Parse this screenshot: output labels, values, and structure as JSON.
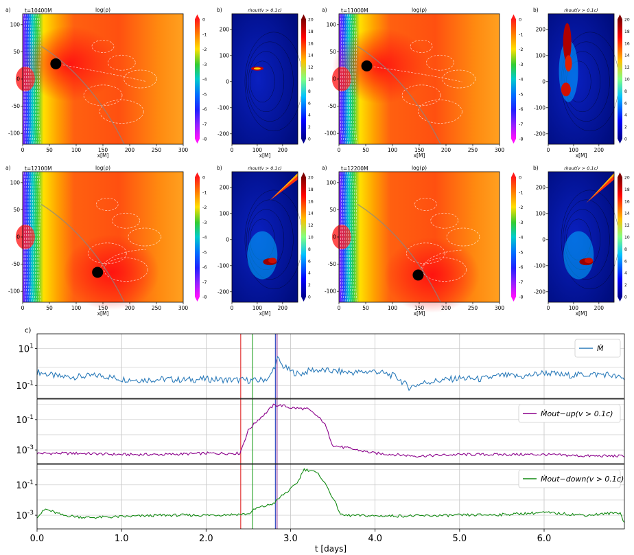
{
  "figure": {
    "panel_time_prefix": "t=",
    "panel_time_suffix": "M",
    "density_title": "log(ρ)",
    "outflow_title": "ṁout(v > 0.1c)",
    "xlabel_maps": "x[M]",
    "label_a": "a)",
    "label_b": "b)",
    "label_c": "c)"
  },
  "colors": {
    "series_total": "#2b7bba",
    "series_up": "#8b008b",
    "series_down": "#128a12",
    "vline_red": "#e02020",
    "vline_green": "#22a022",
    "vline_blue": "#1f3fbf",
    "vline_purple": "#7d1a8c"
  },
  "chart_data": [
    {
      "type": "heatmap",
      "panel": "a",
      "time": "10400",
      "title": "log(ρ)",
      "xlabel": "x[M]",
      "xlim": [
        0,
        300
      ],
      "ylim": [
        -120,
        120
      ],
      "xticks": [
        "0",
        "50",
        "100",
        "150",
        "200",
        "250",
        "300"
      ],
      "yticks": [
        "100",
        "50",
        "0",
        "-50",
        "-100"
      ],
      "colorbar": {
        "range": [
          -8,
          0
        ],
        "ticks": [
          "0",
          "-1",
          "-2",
          "-3",
          "-4",
          "-5",
          "-6",
          "-7",
          "-8"
        ]
      },
      "black_hole": {
        "x": 62,
        "y": 28
      }
    },
    {
      "type": "heatmap",
      "panel": "b",
      "time": "10400",
      "title": "ṁout(v > 0.1c)",
      "xlabel": "x[M]",
      "xlim": [
        0,
        260
      ],
      "ylim": [
        -240,
        260
      ],
      "xticks": [
        "0",
        "100",
        "200"
      ],
      "yticks": [
        "200",
        "100",
        "0",
        "-100",
        "-200"
      ],
      "colorbar": {
        "range": [
          0,
          20
        ],
        "ticks": [
          "20",
          "18",
          "16",
          "14",
          "12",
          "10",
          "8",
          "6",
          "4",
          "2",
          "0"
        ]
      }
    },
    {
      "type": "heatmap",
      "panel": "a",
      "time": "11000",
      "title": "log(ρ)",
      "xlabel": "x[M]",
      "xlim": [
        0,
        300
      ],
      "ylim": [
        -120,
        120
      ],
      "xticks": [
        "0",
        "50",
        "100",
        "150",
        "200",
        "250",
        "300"
      ],
      "yticks": [
        "100",
        "50",
        "0",
        "-50",
        "-100"
      ],
      "colorbar": {
        "range": [
          -8,
          0
        ],
        "ticks": [
          "0",
          "-1",
          "-2",
          "-3",
          "-4",
          "-5",
          "-6",
          "-7",
          "-8"
        ]
      },
      "black_hole": {
        "x": 52,
        "y": 24
      }
    },
    {
      "type": "heatmap",
      "panel": "b",
      "time": "11000",
      "title": "ṁout(v > 0.1c)",
      "xlabel": "x[M]",
      "xlim": [
        0,
        260
      ],
      "ylim": [
        -240,
        260
      ],
      "xticks": [
        "0",
        "100",
        "200"
      ],
      "yticks": [
        "200",
        "100",
        "0",
        "-100",
        "-200"
      ],
      "colorbar": {
        "range": [
          0,
          20
        ],
        "ticks": [
          "20",
          "18",
          "16",
          "14",
          "12",
          "10",
          "8",
          "6",
          "4",
          "2",
          "0"
        ]
      }
    },
    {
      "type": "heatmap",
      "panel": "a",
      "time": "12100",
      "title": "log(ρ)",
      "xlabel": "x[M]",
      "xlim": [
        0,
        300
      ],
      "ylim": [
        -120,
        120
      ],
      "xticks": [
        "0",
        "50",
        "100",
        "150",
        "200",
        "250",
        "300"
      ],
      "yticks": [
        "100",
        "50",
        "0",
        "-50",
        "-100"
      ],
      "colorbar": {
        "range": [
          -8,
          0
        ],
        "ticks": [
          "0",
          "-1",
          "-2",
          "-3",
          "-4",
          "-5",
          "-6",
          "-7",
          "-8"
        ]
      },
      "black_hole": {
        "x": 140,
        "y": -65
      }
    },
    {
      "type": "heatmap",
      "panel": "b",
      "time": "12100",
      "title": "ṁout(v > 0.1c)",
      "xlabel": "x[M]",
      "xlim": [
        0,
        260
      ],
      "ylim": [
        -240,
        260
      ],
      "xticks": [
        "0",
        "100",
        "200"
      ],
      "yticks": [
        "200",
        "100",
        "0",
        "-100",
        "-200"
      ],
      "colorbar": {
        "range": [
          0,
          20
        ],
        "ticks": [
          "20",
          "18",
          "16",
          "14",
          "12",
          "10",
          "8",
          "6",
          "4",
          "2",
          "0"
        ]
      }
    },
    {
      "type": "heatmap",
      "panel": "a",
      "time": "12200",
      "title": "log(ρ)",
      "xlabel": "x[M]",
      "xlim": [
        0,
        300
      ],
      "ylim": [
        -120,
        120
      ],
      "xticks": [
        "0",
        "50",
        "100",
        "150",
        "200",
        "250",
        "300"
      ],
      "yticks": [
        "100",
        "50",
        "0",
        "-50",
        "-100"
      ],
      "colorbar": {
        "range": [
          -8,
          0
        ],
        "ticks": [
          "0",
          "-1",
          "-2",
          "-3",
          "-4",
          "-5",
          "-6",
          "-7",
          "-8"
        ]
      },
      "black_hole": {
        "x": 148,
        "y": -70
      }
    },
    {
      "type": "heatmap",
      "panel": "b",
      "time": "12200",
      "title": "ṁout(v > 0.1c)",
      "xlabel": "x[M]",
      "xlim": [
        0,
        260
      ],
      "ylim": [
        -240,
        260
      ],
      "xticks": [
        "0",
        "100",
        "200"
      ],
      "yticks": [
        "200",
        "100",
        "0",
        "-100",
        "-200"
      ],
      "colorbar": {
        "range": [
          0,
          20
        ],
        "ticks": [
          "20",
          "18",
          "16",
          "14",
          "12",
          "10",
          "8",
          "6",
          "4",
          "2",
          "0"
        ]
      }
    },
    {
      "type": "line",
      "panel": "c",
      "xlabel": "t [days]",
      "xlim": [
        0,
        6.95
      ],
      "xticks": [
        "0.0",
        "1.0",
        "2.0",
        "3.0",
        "4.0",
        "5.0",
        "6.0"
      ],
      "vlines": [
        {
          "x": 2.41,
          "color": "red"
        },
        {
          "x": 2.55,
          "color": "green"
        },
        {
          "x": 2.82,
          "color": "blue"
        },
        {
          "x": 2.84,
          "color": "purple"
        }
      ],
      "series": [
        {
          "name": "total",
          "legend": "Ṁ",
          "yscale": "log",
          "ylim_log10": [
            -1.7,
            1.8
          ],
          "ytick_values": [
            10,
            0.1
          ],
          "yticks": [
            "10^1",
            "10^-1"
          ],
          "x": [
            0,
            0.25,
            0.5,
            0.75,
            1,
            1.25,
            1.5,
            1.75,
            2,
            2.25,
            2.4,
            2.6,
            2.75,
            2.85,
            2.9,
            3,
            3.1,
            3.25,
            3.5,
            3.75,
            4,
            4.25,
            4.4,
            4.6,
            5,
            5.25,
            5.5,
            5.75,
            6,
            6.25,
            6.5,
            6.75,
            6.95
          ],
          "values": [
            0.55,
            0.3,
            0.3,
            0.35,
            0.22,
            0.2,
            0.22,
            0.2,
            0.22,
            0.2,
            0.2,
            0.18,
            0.25,
            3,
            1.2,
            0.6,
            0.4,
            0.7,
            0.6,
            0.5,
            0.6,
            0.3,
            0.08,
            0.15,
            0.25,
            0.22,
            0.35,
            0.3,
            0.5,
            0.35,
            0.4,
            0.4,
            0.22
          ]
        },
        {
          "name": "outflow-up",
          "legend": "Ṁout−up(v > 0.1c)",
          "yscale": "log",
          "ylim_log10": [
            -3.9,
            0.35
          ],
          "ytick_values": [
            0.1,
            0.001
          ],
          "yticks": [
            "10^-1",
            "10^-3"
          ],
          "x": [
            0,
            0.5,
            1,
            1.5,
            2,
            2.4,
            2.5,
            2.6,
            2.7,
            2.8,
            2.9,
            3.0,
            3.2,
            3.3,
            3.4,
            3.5,
            4.0,
            4.5,
            5.0,
            5.5,
            6.0,
            6.5,
            6.95
          ],
          "values": [
            0.0006,
            0.0006,
            0.0005,
            0.0005,
            0.0006,
            0.0006,
            0.02,
            0.08,
            0.25,
            0.9,
            0.85,
            0.6,
            0.5,
            0.2,
            0.06,
            0.002,
            0.0006,
            0.0004,
            0.0005,
            0.0005,
            0.0005,
            0.0004,
            0.0004
          ]
        },
        {
          "name": "outflow-down",
          "legend": "Ṁout−down(v > 0.1c)",
          "yscale": "log",
          "ylim_log10": [
            -3.9,
            0.35
          ],
          "ytick_values": [
            0.1,
            0.001
          ],
          "yticks": [
            "10^-1",
            "10^-3"
          ],
          "x": [
            0,
            0.1,
            0.3,
            0.6,
            1.0,
            1.5,
            2.0,
            2.5,
            2.6,
            2.7,
            2.8,
            2.9,
            3.0,
            3.1,
            3.15,
            3.25,
            3.35,
            3.45,
            3.6,
            4.0,
            4.5,
            5.0,
            5.5,
            6.0,
            6.5,
            6.9,
            6.95
          ],
          "values": [
            0.0008,
            0.0025,
            0.001,
            0.0007,
            0.0008,
            0.001,
            0.001,
            0.0012,
            0.003,
            0.004,
            0.006,
            0.02,
            0.05,
            0.2,
            1.0,
            0.9,
            0.4,
            0.05,
            0.001,
            0.0009,
            0.0009,
            0.001,
            0.0011,
            0.0015,
            0.001,
            0.0015,
            0.0003
          ]
        }
      ]
    }
  ]
}
